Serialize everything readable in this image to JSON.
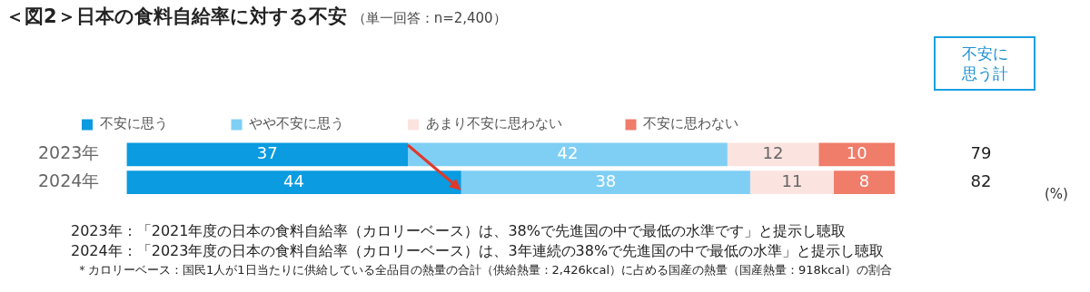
{
  "chart_data": {
    "type": "bar",
    "orientation": "horizontal",
    "stacked": true,
    "title": "＜図2＞日本の食料自給率に対する不安",
    "subtitle": "（単一回答：n=2,400）",
    "categories": [
      "2023年",
      "2024年"
    ],
    "series": [
      {
        "name": "不安に思う",
        "color": "#0a9be0",
        "values": [
          37,
          44
        ]
      },
      {
        "name": "やや不安に思う",
        "color": "#7fcff5",
        "values": [
          42,
          38
        ]
      },
      {
        "name": "あまり不安に思わない",
        "color": "#fbe3df",
        "values": [
          12,
          11
        ]
      },
      {
        "name": "不安に思わない",
        "color": "#f07c6a",
        "values": [
          10,
          8
        ]
      }
    ],
    "xlim": [
      0,
      101
    ],
    "tick_labels": "y",
    "data_labels": true,
    "legend": "top",
    "annotations": [
      "不安に思う計",
      "79",
      "82",
      "(%)",
      "2023年：「2021年度の日本の食料自給率（カロリーベース）は、38%で先進国の中で最低の水準です」と提示し聴取",
      "2024年：「2023年度の日本の食料自給率（カロリーベース）は、3年連続の38%で先進国の中で最低の水準」と提示し聴取",
      "＊カロリーベース：国民1人が1日当たりに供給している全品目の熱量の合計（供給熱量：2,426kcal）に占める国産の熱量（国産熱量：918kcal）の割合"
    ]
  }
}
